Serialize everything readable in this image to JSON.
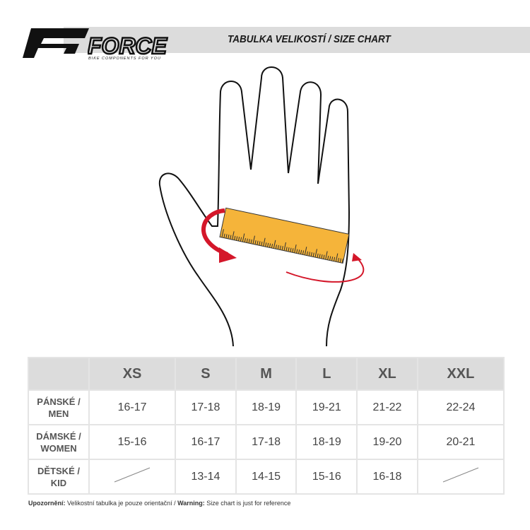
{
  "header": {
    "title": "TABULKA VELIKOSTÍ / SIZE CHART",
    "brand": "FORCE",
    "tagline": "BIKE COMPONENTS FOR YOU"
  },
  "table": {
    "columns": [
      "XS",
      "S",
      "M",
      "L",
      "XL",
      "XXL"
    ],
    "rows": [
      {
        "label": "PÁNSKÉ / MEN",
        "values": [
          "16-17",
          "17-18",
          "18-19",
          "19-21",
          "21-22",
          "22-24"
        ]
      },
      {
        "label": "DÁMSKÉ / WOMEN",
        "values": [
          "15-16",
          "16-17",
          "17-18",
          "18-19",
          "19-20",
          "20-21"
        ]
      },
      {
        "label": "DĚTSKÉ / KID",
        "values": [
          "",
          "13-14",
          "14-15",
          "15-16",
          "16-18",
          ""
        ]
      }
    ]
  },
  "note": {
    "warning_cz_label": "Upozornění:",
    "warning_cz_text": " Velikostní tabulka je pouze orientační / ",
    "warning_en_label": "Warning:",
    "warning_en_text": " Size chart is just for reference"
  },
  "colors": {
    "tape": "#f5b43a",
    "arrow": "#d4172a",
    "header_gray": "#dcdcdc"
  }
}
